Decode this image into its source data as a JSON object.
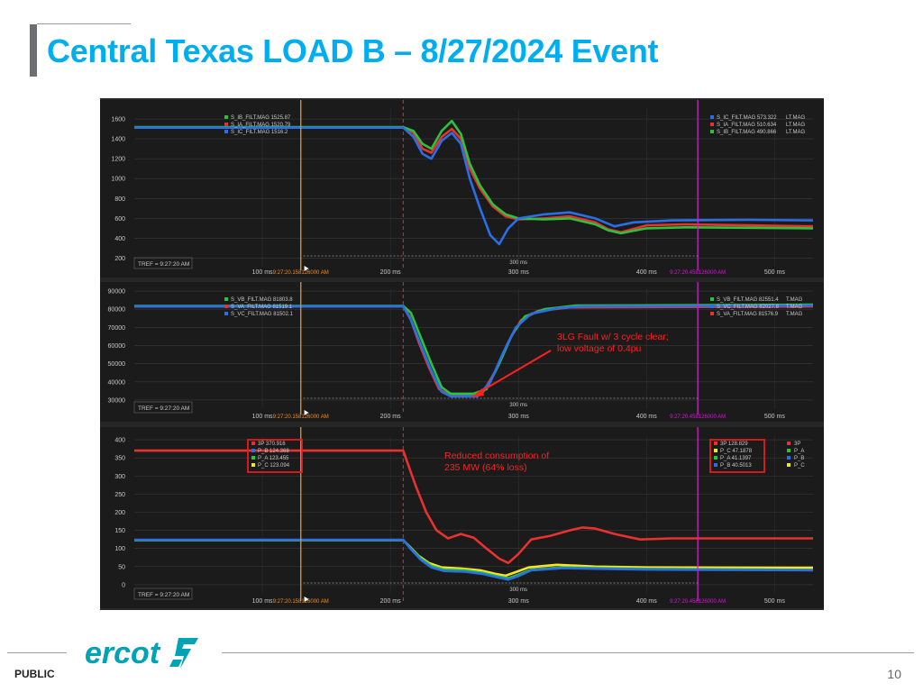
{
  "page": {
    "title": "Central Texas LOAD B – 8/27/2024 Event",
    "footer_label": "PUBLIC",
    "page_number": "10",
    "logo_text": "ercot",
    "logo_color": "#00a3b4",
    "accent_color": "#00aeef"
  },
  "chart_data": [
    {
      "type": "line",
      "panel": "current",
      "x_range_ms": [
        0,
        530
      ],
      "xticks": [
        {
          "x": 100,
          "label": "100 ms"
        },
        {
          "x": 200,
          "label": "200 ms"
        },
        {
          "x": 300,
          "label": "300 ms"
        },
        {
          "x": 400,
          "label": "400 ms"
        },
        {
          "x": 500,
          "label": "500 ms"
        }
      ],
      "ylim": [
        150,
        1700
      ],
      "yticks": [
        200,
        400,
        600,
        800,
        1000,
        1200,
        1400,
        1600
      ],
      "tref": "TREF = 9:27:20 AM",
      "cursor1": {
        "x": 130,
        "label": "9:27:20.158126000 AM"
      },
      "cursor2": {
        "x": 440,
        "label": "9:27:20.458126000 AM"
      },
      "fault_x": 210,
      "span": {
        "x1": 132,
        "x2": 440,
        "label": "300 ms"
      },
      "legend_left": [
        {
          "name": "S_IB_FILT.MAG",
          "value": "1525.87",
          "color": "#2bc23e"
        },
        {
          "name": "S_IA_FILT.MAG",
          "value": "1520.79",
          "color": "#e8322f"
        },
        {
          "name": "S_IC_FILT.MAG",
          "value": "1516.2",
          "color": "#2a6fe8"
        }
      ],
      "legend_right": [
        {
          "name": "S_IC_FILT.MAG",
          "value": "573.322",
          "color": "#2a6fe8"
        },
        {
          "name": "S_IA_FILT.MAG",
          "value": "510.634",
          "color": "#e8322f"
        },
        {
          "name": "S_IB_FILT.MAG",
          "value": "490.866",
          "color": "#2bc23e"
        }
      ],
      "legend_edge": [
        "LT.MAG",
        "LT.MAG",
        "LT.MAG"
      ],
      "series": [
        {
          "color": "#e8322f",
          "points": [
            [
              0,
              1515
            ],
            [
              210,
              1515
            ],
            [
              218,
              1460
            ],
            [
              225,
              1300
            ],
            [
              232,
              1260
            ],
            [
              240,
              1420
            ],
            [
              248,
              1500
            ],
            [
              255,
              1400
            ],
            [
              262,
              1100
            ],
            [
              270,
              900
            ],
            [
              280,
              720
            ],
            [
              290,
              620
            ],
            [
              300,
              590
            ],
            [
              320,
              600
            ],
            [
              340,
              620
            ],
            [
              360,
              560
            ],
            [
              370,
              490
            ],
            [
              380,
              460
            ],
            [
              400,
              530
            ],
            [
              430,
              540
            ],
            [
              480,
              530
            ],
            [
              530,
              520
            ]
          ]
        },
        {
          "color": "#2bc23e",
          "points": [
            [
              0,
              1518
            ],
            [
              210,
              1518
            ],
            [
              218,
              1480
            ],
            [
              225,
              1350
            ],
            [
              232,
              1300
            ],
            [
              240,
              1480
            ],
            [
              248,
              1580
            ],
            [
              255,
              1450
            ],
            [
              262,
              1150
            ],
            [
              270,
              930
            ],
            [
              280,
              740
            ],
            [
              290,
              640
            ],
            [
              300,
              600
            ],
            [
              320,
              590
            ],
            [
              340,
              600
            ],
            [
              360,
              540
            ],
            [
              370,
              480
            ],
            [
              380,
              450
            ],
            [
              400,
              500
            ],
            [
              430,
              510
            ],
            [
              480,
              505
            ],
            [
              530,
              500
            ]
          ]
        },
        {
          "color": "#2a6fe8",
          "points": [
            [
              0,
              1512
            ],
            [
              210,
              1512
            ],
            [
              218,
              1420
            ],
            [
              225,
              1250
            ],
            [
              232,
              1200
            ],
            [
              240,
              1380
            ],
            [
              248,
              1460
            ],
            [
              255,
              1350
            ],
            [
              262,
              1000
            ],
            [
              270,
              700
            ],
            [
              278,
              430
            ],
            [
              285,
              340
            ],
            [
              292,
              500
            ],
            [
              300,
              600
            ],
            [
              320,
              640
            ],
            [
              340,
              660
            ],
            [
              360,
              600
            ],
            [
              375,
              520
            ],
            [
              390,
              560
            ],
            [
              420,
              580
            ],
            [
              480,
              585
            ],
            [
              530,
              580
            ]
          ]
        }
      ]
    },
    {
      "type": "line",
      "panel": "voltage",
      "x_range_ms": [
        0,
        530
      ],
      "xticks": [
        {
          "x": 100,
          "label": "100 ms"
        },
        {
          "x": 200,
          "label": "200 ms"
        },
        {
          "x": 300,
          "label": "300 ms"
        },
        {
          "x": 400,
          "label": "400 ms"
        },
        {
          "x": 500,
          "label": "500 ms"
        }
      ],
      "ylim": [
        27000,
        91000
      ],
      "yticks": [
        30000,
        40000,
        50000,
        60000,
        70000,
        80000,
        90000
      ],
      "tref": "TREF = 9:27:20 AM",
      "cursor1": {
        "x": 130,
        "label": "9:27:20.158126000 AM"
      },
      "cursor2": {
        "x": 440,
        "label": "9:27:20.458126000 AM"
      },
      "fault_x": 210,
      "span": {
        "x1": 132,
        "x2": 440,
        "label": "300 ms"
      },
      "legend_left": [
        {
          "name": "S_VB_FILT.MAG",
          "value": "81803.8",
          "color": "#2bc23e"
        },
        {
          "name": "S_VA_FILT.MAG",
          "value": "81519.1",
          "color": "#e8322f"
        },
        {
          "name": "S_VC_FILT.MAG",
          "value": "81502.1",
          "color": "#2a6fe8"
        }
      ],
      "legend_right": [
        {
          "name": "S_VB_FILT.MAG",
          "value": "82551.4",
          "color": "#2bc23e"
        },
        {
          "name": "S_VC_FILT.MAG",
          "value": "82027.8",
          "color": "#2a6fe8"
        },
        {
          "name": "S_VA_FILT.MAG",
          "value": "81576.9",
          "color": "#e8322f"
        }
      ],
      "legend_edge": [
        "T.MAG",
        "T.MAG",
        "T.MAG"
      ],
      "annotation": {
        "lines": [
          "3LG Fault w/ 3 cycle clear;",
          "low voltage of 0.4pu"
        ],
        "color": "#ff2020"
      },
      "series": [
        {
          "color": "#e8322f",
          "points": [
            [
              0,
              81500
            ],
            [
              210,
              81500
            ],
            [
              215,
              76000
            ],
            [
              222,
              62000
            ],
            [
              230,
              48000
            ],
            [
              238,
              36000
            ],
            [
              245,
              33000
            ],
            [
              262,
              33000
            ],
            [
              272,
              34000
            ],
            [
              282,
              46000
            ],
            [
              292,
              62000
            ],
            [
              302,
              74000
            ],
            [
              315,
              79000
            ],
            [
              340,
              81000
            ],
            [
              530,
              81500
            ]
          ]
        },
        {
          "color": "#2bc23e",
          "points": [
            [
              0,
              81800
            ],
            [
              210,
              81800
            ],
            [
              216,
              78000
            ],
            [
              224,
              64000
            ],
            [
              232,
              50000
            ],
            [
              240,
              37000
            ],
            [
              247,
              33500
            ],
            [
              265,
              33500
            ],
            [
              275,
              36000
            ],
            [
              285,
              50000
            ],
            [
              295,
              66000
            ],
            [
              305,
              76000
            ],
            [
              320,
              80000
            ],
            [
              345,
              82000
            ],
            [
              530,
              82500
            ]
          ]
        },
        {
          "color": "#2a6fe8",
          "points": [
            [
              0,
              81500
            ],
            [
              210,
              81500
            ],
            [
              216,
              74000
            ],
            [
              224,
              60000
            ],
            [
              232,
              46000
            ],
            [
              240,
              34500
            ],
            [
              247,
              32000
            ],
            [
              268,
              32000
            ],
            [
              278,
              40000
            ],
            [
              288,
              56000
            ],
            [
              298,
              70000
            ],
            [
              310,
              77500
            ],
            [
              330,
              80500
            ],
            [
              350,
              81500
            ],
            [
              530,
              82000
            ]
          ]
        }
      ]
    },
    {
      "type": "line",
      "panel": "power",
      "x_range_ms": [
        0,
        530
      ],
      "xticks": [
        {
          "x": 100,
          "label": "100 ms"
        },
        {
          "x": 200,
          "label": "200 ms"
        },
        {
          "x": 300,
          "label": "300 ms"
        },
        {
          "x": 400,
          "label": "400 ms"
        },
        {
          "x": 500,
          "label": "500 ms"
        }
      ],
      "ylim": [
        -15,
        410
      ],
      "yticks": [
        0,
        50,
        100,
        150,
        200,
        250,
        300,
        350,
        400
      ],
      "tref": "TREF = 9:27:20 AM",
      "cursor1": {
        "x": 130,
        "label": "9:27:20.158126000 AM"
      },
      "cursor2": {
        "x": 440,
        "label": "9:27:20.458126000 AM"
      },
      "fault_x": 210,
      "span": {
        "x1": 132,
        "x2": 440,
        "label": "300 ms"
      },
      "legend_left": [
        {
          "name": "3P",
          "value": "370.916",
          "color": "#e8322f"
        },
        {
          "name": "P_B",
          "value": "124.368",
          "color": "#2a6fe8"
        },
        {
          "name": "P_A",
          "value": "123.455",
          "color": "#2bc23e"
        },
        {
          "name": "P_C",
          "value": "123.094",
          "color": "#f5e52a"
        }
      ],
      "legend_right": [
        {
          "name": "3P",
          "value": "128.829",
          "color": "#e8322f"
        },
        {
          "name": "P_C",
          "value": "47.1878",
          "color": "#f5e52a"
        },
        {
          "name": "P_A",
          "value": "41.1397",
          "color": "#2bc23e"
        },
        {
          "name": "P_B",
          "value": "40.5013",
          "color": "#2a6fe8"
        }
      ],
      "legend_far": [
        {
          "name": "3P",
          "color": "#e8322f"
        },
        {
          "name": "P_A",
          "color": "#2bc23e"
        },
        {
          "name": "P_B",
          "color": "#2a6fe8"
        },
        {
          "name": "P_C",
          "color": "#f5e52a"
        }
      ],
      "annotation": {
        "lines": [
          "Reduced consumption of",
          "235 MW (64% loss)"
        ],
        "color": "#ff2020"
      },
      "series": [
        {
          "color": "#e8322f",
          "points": [
            [
              0,
              370
            ],
            [
              210,
              370
            ],
            [
              214,
              330
            ],
            [
              220,
              270
            ],
            [
              228,
              200
            ],
            [
              236,
              150
            ],
            [
              245,
              128
            ],
            [
              255,
              140
            ],
            [
              265,
              130
            ],
            [
              275,
              100
            ],
            [
              285,
              72
            ],
            [
              292,
              60
            ],
            [
              300,
              85
            ],
            [
              310,
              125
            ],
            [
              325,
              135
            ],
            [
              340,
              150
            ],
            [
              350,
              158
            ],
            [
              360,
              155
            ],
            [
              375,
              140
            ],
            [
              395,
              125
            ],
            [
              420,
              128
            ],
            [
              530,
              128
            ]
          ]
        },
        {
          "color": "#f5e52a",
          "points": [
            [
              0,
              123
            ],
            [
              210,
              123
            ],
            [
              215,
              105
            ],
            [
              222,
              80
            ],
            [
              230,
              60
            ],
            [
              240,
              48
            ],
            [
              255,
              45
            ],
            [
              270,
              40
            ],
            [
              282,
              30
            ],
            [
              290,
              25
            ],
            [
              298,
              35
            ],
            [
              308,
              48
            ],
            [
              330,
              55
            ],
            [
              360,
              50
            ],
            [
              400,
              48
            ],
            [
              530,
              47
            ]
          ]
        },
        {
          "color": "#2bc23e",
          "points": [
            [
              0,
              123
            ],
            [
              210,
              123
            ],
            [
              216,
              100
            ],
            [
              224,
              72
            ],
            [
              232,
              52
            ],
            [
              242,
              42
            ],
            [
              258,
              40
            ],
            [
              272,
              33
            ],
            [
              284,
              23
            ],
            [
              292,
              18
            ],
            [
              300,
              28
            ],
            [
              310,
              42
            ],
            [
              335,
              48
            ],
            [
              365,
              46
            ],
            [
              400,
              44
            ],
            [
              530,
              41
            ]
          ]
        },
        {
          "color": "#2a6fe8",
          "points": [
            [
              0,
              124
            ],
            [
              210,
              124
            ],
            [
              216,
              98
            ],
            [
              224,
              68
            ],
            [
              232,
              48
            ],
            [
              242,
              38
            ],
            [
              258,
              36
            ],
            [
              272,
              30
            ],
            [
              284,
              20
            ],
            [
              292,
              14
            ],
            [
              300,
              24
            ],
            [
              310,
              40
            ],
            [
              335,
              46
            ],
            [
              365,
              44
            ],
            [
              400,
              42
            ],
            [
              530,
              40
            ]
          ]
        }
      ]
    }
  ]
}
